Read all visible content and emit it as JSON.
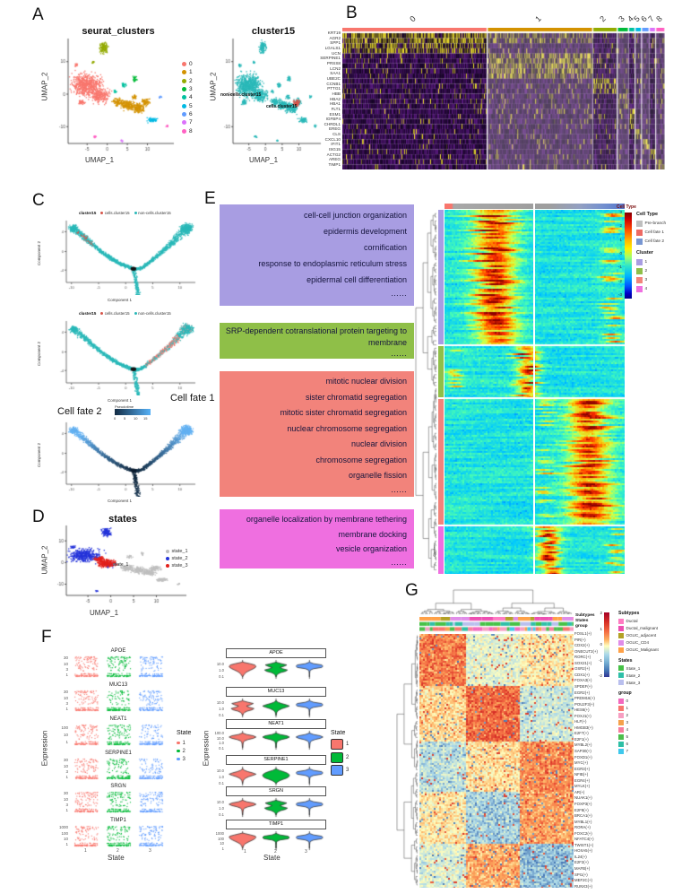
{
  "colors": {
    "cluster9": [
      "#F8766D",
      "#D39200",
      "#93AA00",
      "#00BA38",
      "#00C19F",
      "#00B9E3",
      "#619CFF",
      "#DB72FB",
      "#FF61C3"
    ],
    "teal": "#2AB8B8",
    "highlight_red": "#D6554A",
    "state_scatter": [
      "#BEBEBE",
      "#2433D9",
      "#E2211C"
    ],
    "state_expr": [
      "#F8766D",
      "#00BA38",
      "#619CFF"
    ],
    "pseudotime": [
      "#132B43",
      "#56B1F7"
    ]
  },
  "a": {
    "label": "A",
    "plot1": {
      "title": "seurat_clusters",
      "xlabel": "UMAP_1",
      "ylabel": "UMAP_2",
      "xticks": [
        "-5",
        "0",
        "5",
        "10"
      ],
      "yticks": [
        "10",
        "0",
        "-10"
      ],
      "legend": [
        "0",
        "1",
        "2",
        "3",
        "4",
        "5",
        "6",
        "7",
        "8"
      ]
    },
    "plot2": {
      "title": "cluster15",
      "xlabel": "UMAP_1",
      "ylabel": "UMAP_2",
      "annotation1": "non-cells.cluster15",
      "annotation2": "cells.cluster15"
    }
  },
  "b": {
    "label": "B",
    "cluster_labels": [
      "0",
      "1",
      "2",
      "3",
      "4",
      "5",
      "6",
      "7",
      "8"
    ],
    "genes": [
      "KRT19",
      "AGR2",
      "SPP1",
      "LGALS1",
      "UCN",
      "SERPINE1",
      "PRSS8",
      "LCN2",
      "SAA1",
      "UBE2C",
      "CCNB1",
      "PTTG1",
      "HBB",
      "HBA2",
      "HBA1",
      "FLT1",
      "ESM1",
      "IGFBP4",
      "CHRDL1",
      "EREG",
      "CLS",
      "CXCL10",
      "IFIT1",
      "ISG15",
      "ACTG2",
      "AREG",
      "TIMP1"
    ]
  },
  "c": {
    "label": "C",
    "legend_title": "cluster15",
    "legend": [
      {
        "label": "cells.cluster15",
        "color": "#D6554A"
      },
      {
        "label": "non-cells.cluster15",
        "color": "#2AB8B8"
      }
    ],
    "xlabel": "Component 1",
    "ylabel": "Component 2",
    "xticks": [
      "-10",
      "-5",
      "0",
      "5",
      "10"
    ],
    "yticks": [
      "4",
      "0",
      "-4"
    ],
    "fate1": "Cell fate 1",
    "fate2": "Cell fate 2",
    "pseudotime_label": "Pseudotime",
    "pseudotime_ticks": [
      "0",
      "5",
      "10",
      "15"
    ]
  },
  "d": {
    "label": "D",
    "title": "states",
    "xlabel": "UMAP_1",
    "ylabel": "UMAP_2",
    "xticks": [
      "-5",
      "0",
      "5",
      "10"
    ],
    "yticks": [
      "10",
      "0",
      "-10"
    ],
    "legend": [
      {
        "label": "state_1",
        "color": "#BEBEBE"
      },
      {
        "label": "state_2",
        "color": "#2433D9"
      },
      {
        "label": "state_3",
        "color": "#E2211C"
      }
    ],
    "annotation": "state_1"
  },
  "e": {
    "label": "E",
    "go_groups": [
      {
        "color": "#A89DE2",
        "terms": [
          "cell-cell junction organization",
          "epidermis development",
          "cornification",
          "response to endoplasmic reticulum stress",
          "epidermal cell differentiation"
        ],
        "more": "……"
      },
      {
        "color": "#8FBF48",
        "terms": [
          "SRP-dependent cotranslational protein targeting to membrane"
        ],
        "more": "……"
      },
      {
        "color": "#F2837B",
        "terms": [
          "mitotic nuclear division",
          "sister chromatid segregation",
          "mitotic sister chromatid segregation",
          "nuclear chromosome segregation",
          "nuclear division",
          "chromosome segregation",
          "organelle fission"
        ],
        "more": "……"
      },
      {
        "color": "#EF6FE0",
        "terms": [
          "organelle localization by membrane tethering",
          "membrane docking",
          "vesicle organization"
        ],
        "more": "……"
      }
    ],
    "colorbar": {
      "title": "Cell Type",
      "ticks": [
        "3",
        "2",
        "1",
        "0",
        "-1",
        "-2",
        "-3"
      ]
    },
    "celltype_legend": {
      "title": "Cell Type",
      "items": [
        {
          "label": "Pre-branch",
          "color": "#BFBFBF"
        },
        {
          "label": "Cell fate 1",
          "color": "#EE6A63"
        },
        {
          "label": "Cell fate 2",
          "color": "#7896D2"
        }
      ]
    },
    "cluster_legend": {
      "title": "Cluster",
      "items": [
        {
          "label": "1",
          "color": "#A89DE2"
        },
        {
          "label": "2",
          "color": "#8FBF48"
        },
        {
          "label": "3",
          "color": "#F2837B"
        },
        {
          "label": "4",
          "color": "#EF6FE0"
        }
      ]
    },
    "row_axis_label": "Cluster"
  },
  "f": {
    "label": "F",
    "xlabel": "State",
    "ylabel": "Expression",
    "xticks": [
      "1",
      "2",
      "3"
    ],
    "legend_title": "State",
    "legend": [
      {
        "label": "1",
        "color": "#F8766D"
      },
      {
        "label": "2",
        "color": "#00BA38"
      },
      {
        "label": "3",
        "color": "#619CFF"
      }
    ],
    "genes": [
      {
        "name": "APOE",
        "jitter_ticks": [
          "30",
          "10",
          "3",
          "1"
        ],
        "violin_ticks": [
          "10.0",
          "1.0",
          "0.1"
        ]
      },
      {
        "name": "MUC13",
        "jitter_ticks": [
          "30",
          "10",
          "3",
          "1"
        ],
        "violin_ticks": [
          "10.0",
          "1.0",
          "0.1"
        ]
      },
      {
        "name": "NEAT1",
        "jitter_ticks": [
          "100",
          "10",
          "1"
        ],
        "violin_ticks": [
          "100.0",
          "10.0",
          "1.0",
          "0.1"
        ]
      },
      {
        "name": "SERPINE1",
        "jitter_ticks": [
          "30",
          "10",
          "3",
          "1"
        ],
        "violin_ticks": [
          "10.0",
          "1.0",
          "0.1"
        ]
      },
      {
        "name": "SRGN",
        "jitter_ticks": [
          "30",
          "10",
          "3",
          "1"
        ],
        "violin_ticks": [
          "10.0",
          "1.0",
          "0.1"
        ]
      },
      {
        "name": "TIMP1",
        "jitter_ticks": [
          "1000",
          "100",
          "10",
          "1"
        ],
        "violin_ticks": [
          "1000",
          "100",
          "10",
          "1"
        ]
      }
    ]
  },
  "g": {
    "label": "G",
    "track_labels": [
      "Subtypes",
      "States",
      "group"
    ],
    "colorbar_ticks": [
      "2",
      "1",
      "0",
      "-1",
      "-2"
    ],
    "legends": [
      {
        "title": "Subtypes",
        "items": [
          {
            "label": "Ductal",
            "color": "#FF7BC2"
          },
          {
            "label": "Ductal_malignant",
            "color": "#ED4FB1"
          },
          {
            "label": "OGUC_adjacent",
            "color": "#B3A125"
          },
          {
            "label": "OGUC_CD4",
            "color": "#E08CE8"
          },
          {
            "label": "OGUC_Malignant",
            "color": "#FFA147"
          }
        ]
      },
      {
        "title": "States",
        "items": [
          {
            "label": "State_1",
            "color": "#46C146"
          },
          {
            "label": "State_2",
            "color": "#2FBFA8"
          },
          {
            "label": "State_3",
            "color": "#B9BFEE"
          }
        ]
      },
      {
        "title": "group",
        "items": [
          {
            "label": "0",
            "color": "#F368BE"
          },
          {
            "label": "1",
            "color": "#F8766D"
          },
          {
            "label": "2",
            "color": "#F79EC1"
          },
          {
            "label": "3",
            "color": "#F5A14B"
          },
          {
            "label": "4",
            "color": "#F77E9E"
          },
          {
            "label": "5",
            "color": "#4CBE4C"
          },
          {
            "label": "6",
            "color": "#2EBFA5"
          },
          {
            "label": "7",
            "color": "#3FC8EC"
          }
        ]
      }
    ],
    "regulons": [
      "FOSL1(+)",
      "PIR(+)",
      "CDX2(+)",
      "ONECUT2(+)",
      "RORC(+)",
      "SOX21(+)",
      "OSR2(+)",
      "CDX1(+)",
      "FOXA3(+)",
      "SPDEF(+)",
      "EGR2(+)",
      "PRDM16(+)",
      "POU2F3(+)",
      "HES6(+)",
      "FOXJ1(+)",
      "HLF(+)",
      "HMGB3(+)",
      "E2F7(+)",
      "E2F1(+)",
      "MYBL2(+)",
      "SAP30(+)",
      "FOXD1(+)",
      "MYC(+)",
      "EGR3(+)",
      "NFIB(+)",
      "EGR4(+)",
      "MYLK(+)",
      "AR(+)",
      "NUAK1(+)",
      "FOXP3(+)",
      "E2F8(+)",
      "BRCA1(+)",
      "MYBL1(+)",
      "RORA(+)",
      "FOXC2(+)",
      "NFATC4(+)",
      "TWIST1(+)",
      "HOXA5(+)",
      "IL24(+)",
      "E2F2(+)",
      "MAFB(+)",
      "SPI1(+)",
      "MEF2C(+)",
      "RUNX3(+)"
    ]
  },
  "chart_data": [
    {
      "id": "A1",
      "type": "scatter",
      "title": "seurat_clusters",
      "xlabel": "UMAP_1",
      "ylabel": "UMAP_2",
      "xticks": [
        -5,
        0,
        5,
        10
      ],
      "yticks": [
        10,
        0,
        -10
      ],
      "legend": [
        "0",
        "1",
        "2",
        "3",
        "4",
        "5",
        "6",
        "7",
        "8"
      ],
      "legend_position": "right"
    },
    {
      "id": "A2",
      "type": "scatter",
      "title": "cluster15",
      "xlabel": "UMAP_1",
      "ylabel": "UMAP_2",
      "groups": [
        "non-cells.cluster15",
        "cells.cluster15"
      ]
    },
    {
      "id": "B",
      "type": "heatmap",
      "cols": "cells grouped by clusters 0-8",
      "rows": [
        "KRT19",
        "AGR2",
        "SPP1",
        "LGALS1",
        "UCN",
        "SERPINE1",
        "PRSS8",
        "LCN2",
        "SAA1",
        "UBE2C",
        "CCNB1",
        "PTTG1",
        "HBB",
        "HBA2",
        "HBA1",
        "FLT1",
        "ESM1",
        "IGFBP4",
        "CHRDL1",
        "EREG",
        "CLS",
        "CXCL10",
        "IFIT1",
        "ISG15",
        "ACTG2",
        "AREG",
        "TIMP1"
      ],
      "palette": "purple-black-yellow"
    },
    {
      "id": "C",
      "type": "scatter",
      "subtype": "monocle-trajectory",
      "plots": [
        "cluster15",
        "cluster15 cell-fate highlight",
        "Pseudotime"
      ],
      "xlabel": "Component 1",
      "ylabel": "Component 2",
      "xticks": [
        -10,
        -5,
        0,
        5,
        10
      ],
      "yticks": [
        4,
        0,
        -4
      ],
      "pseudotime_range": [
        0,
        15
      ],
      "branch_labels": [
        "Cell fate 1",
        "Cell fate 2"
      ]
    },
    {
      "id": "D",
      "type": "scatter",
      "title": "states",
      "xlabel": "UMAP_1",
      "ylabel": "UMAP_2",
      "groups": [
        "state_1",
        "state_2",
        "state_3"
      ]
    },
    {
      "id": "E",
      "type": "heatmap",
      "subtype": "branched-pseudotime-heatmap",
      "value_range": [
        -3,
        3
      ],
      "column_groups": [
        "Cell fate 1",
        "Pre-branch",
        "Cell fate 2"
      ],
      "row_clusters": [
        "1",
        "2",
        "3",
        "4"
      ],
      "palette": "jet"
    },
    {
      "id": "F",
      "type": "violin",
      "genes": [
        "APOE",
        "MUC13",
        "NEAT1",
        "SERPINE1",
        "SRGN",
        "TIMP1"
      ],
      "x": "State",
      "x_values": [
        "1",
        "2",
        "3"
      ],
      "y": "Expression",
      "y_scale": "log"
    },
    {
      "id": "G",
      "type": "heatmap",
      "value_range": [
        -2,
        2
      ],
      "rows": "regulons",
      "cols": "cells",
      "annotations": [
        "Subtypes",
        "States",
        "group"
      ],
      "palette": "RdYlBu"
    }
  ]
}
